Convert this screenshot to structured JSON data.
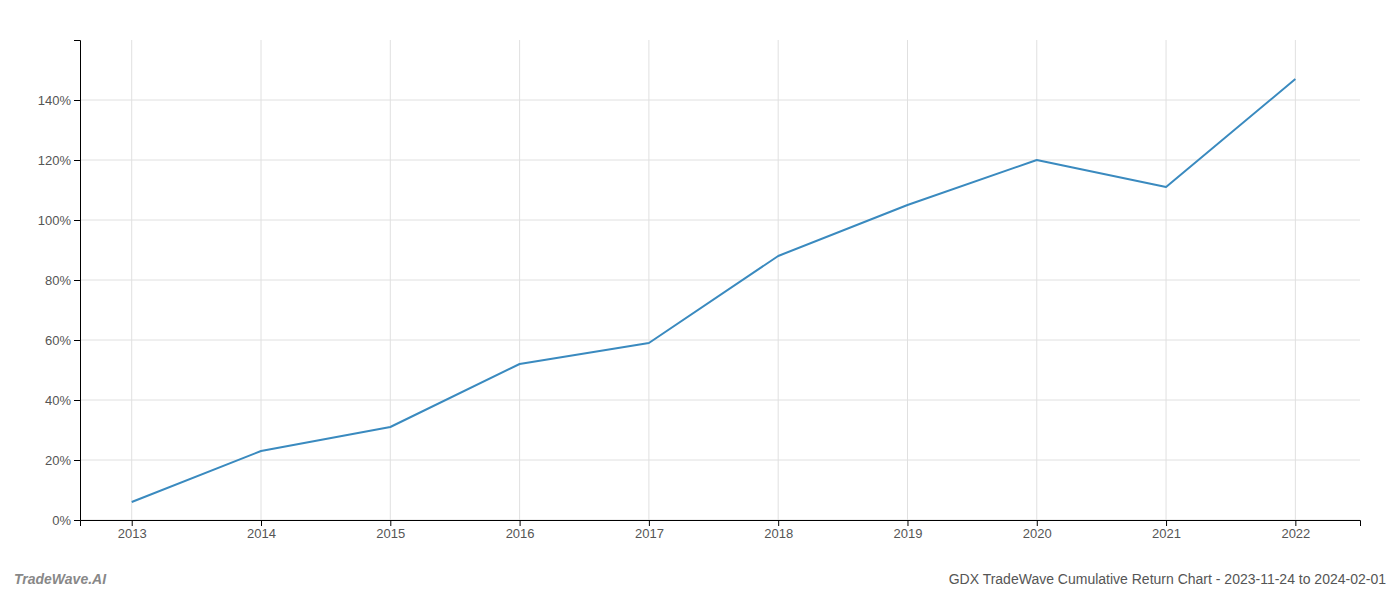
{
  "chart_data": {
    "type": "line",
    "title": "GDX TradeWave Cumulative Return Chart - 2023-11-24 to 2024-02-01",
    "annotations": [
      "TradeWave.AI"
    ],
    "x": [
      2013,
      2014,
      2015,
      2016,
      2017,
      2018,
      2019,
      2020,
      2021,
      2022
    ],
    "values": [
      6,
      23,
      31,
      52,
      59,
      88,
      105,
      120,
      111,
      147
    ],
    "color": "#3a8abf",
    "xlim": [
      2012.6,
      2022.5
    ],
    "ylim": [
      0,
      160
    ],
    "xticks": [
      2013,
      2014,
      2015,
      2016,
      2017,
      2018,
      2019,
      2020,
      2021,
      2022
    ],
    "yticks": [
      {
        "value": 0,
        "label": "0%"
      },
      {
        "value": 20,
        "label": "20%"
      },
      {
        "value": 40,
        "label": "40%"
      },
      {
        "value": 60,
        "label": "60%"
      },
      {
        "value": 80,
        "label": "80%"
      },
      {
        "value": 100,
        "label": "100%"
      },
      {
        "value": 120,
        "label": "120%"
      },
      {
        "value": 140,
        "label": "140%"
      }
    ],
    "grid": true
  }
}
